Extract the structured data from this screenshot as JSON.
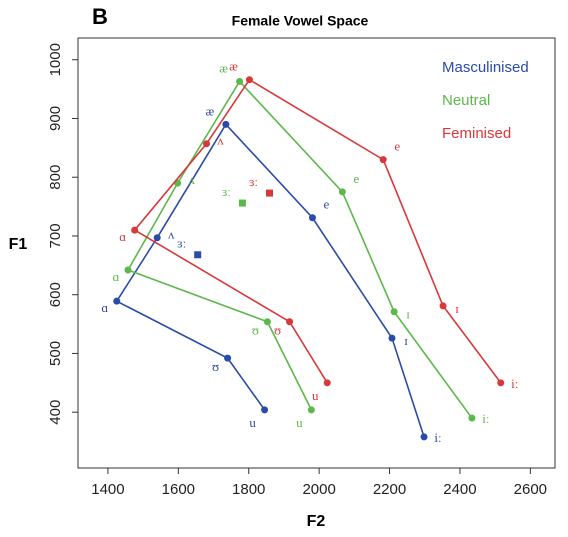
{
  "chart_data": {
    "type": "line",
    "panel": "B",
    "title": "Female Vowel Space",
    "x_label": "F2",
    "y_label": "F1",
    "xlim": [
      1315,
      2670
    ],
    "ylim": [
      305,
      1037
    ],
    "xticks": [
      1400,
      1600,
      1800,
      2000,
      2200,
      2400,
      2600
    ],
    "yticks": [
      400,
      500,
      600,
      700,
      800,
      900,
      1000
    ],
    "legend": "top-right",
    "series": [
      {
        "name": "Masculinised",
        "color": "#2b4ba8",
        "labels": [
          "u",
          "ʊ",
          "ɑ",
          "ʌ",
          "æ",
          "e",
          "ɪ",
          "iː",
          null,
          "ɜː"
        ],
        "x": [
          1845,
          1740,
          1425,
          1540,
          1735,
          1981,
          2207,
          2298,
          null,
          1655
        ],
        "y": [
          404,
          492,
          589,
          697,
          890,
          731,
          526,
          358,
          null,
          668
        ]
      },
      {
        "name": "Neutral",
        "color": "#5cb84a",
        "labels": [
          "u",
          "ʊ",
          "ɑ",
          "ʌ",
          "æ",
          "e",
          "ɪ",
          "iː",
          null,
          "ɜː"
        ],
        "x": [
          1978,
          1853,
          1457,
          1598,
          1774,
          2066,
          2213,
          2434,
          null,
          1782
        ],
        "y": [
          404,
          554,
          642,
          790,
          963,
          775,
          571,
          390,
          null,
          756
        ]
      },
      {
        "name": "Feminised",
        "color": "#d9383a",
        "labels": [
          "u",
          "ʊ",
          "ɑ",
          "ʌ",
          "æ",
          "e",
          "ɪ",
          "iː",
          null,
          "ɜː"
        ],
        "x": [
          2023,
          1916,
          1476,
          1680,
          1802,
          2182,
          2352,
          2516,
          null,
          1859
        ],
        "y": [
          450,
          554,
          710,
          857,
          966,
          830,
          581,
          450,
          null,
          773
        ]
      }
    ]
  }
}
